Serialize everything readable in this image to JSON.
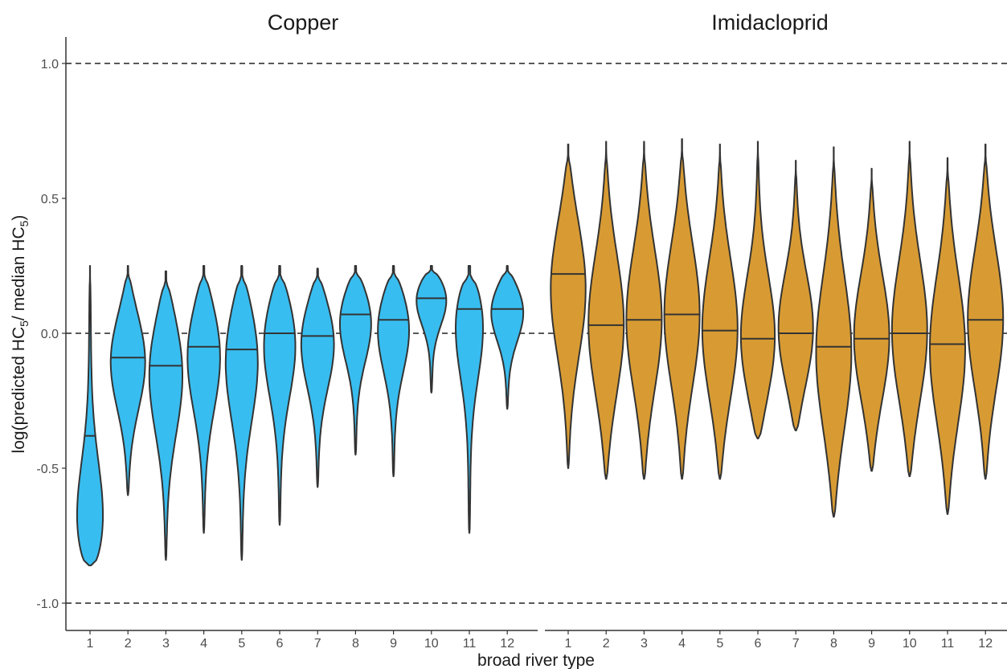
{
  "chart_data": {
    "type": "violin",
    "ylabel": "log(predicted HC5/ median HC5)",
    "ylabel_parts": {
      "p1": "log(predicted HC",
      "sub1": "5",
      "p2": "/ median HC",
      "sub2": "5",
      "p3": ")"
    },
    "xlabel": "broad river type",
    "ylim": [
      -1.1,
      1.1
    ],
    "yticks": [
      1.0,
      0.5,
      0.0,
      -0.5,
      -1.0
    ],
    "ytick_labels": [
      "1.0",
      "0.5",
      "0.0",
      "-0.5",
      "-1.0"
    ],
    "reference_lines": [
      1.0,
      0.0,
      -1.0
    ],
    "grid": false,
    "categories": [
      "1",
      "2",
      "3",
      "4",
      "5",
      "6",
      "7",
      "8",
      "9",
      "10",
      "11",
      "12"
    ],
    "panels": [
      {
        "title": "Copper",
        "color": "#38BDF0",
        "violins": [
          {
            "category": "1",
            "min": -0.86,
            "max": 0.25,
            "median": -0.38,
            "peak": -0.78
          },
          {
            "category": "2",
            "min": -0.6,
            "max": 0.25,
            "median": -0.09,
            "peak": -0.09
          },
          {
            "category": "3",
            "min": -0.84,
            "max": 0.23,
            "median": -0.12,
            "peak": -0.12
          },
          {
            "category": "4",
            "min": -0.74,
            "max": 0.25,
            "median": -0.05,
            "peak": -0.05
          },
          {
            "category": "5",
            "min": -0.84,
            "max": 0.25,
            "median": -0.06,
            "peak": -0.06
          },
          {
            "category": "6",
            "min": -0.71,
            "max": 0.25,
            "median": 0.0,
            "peak": 0.0
          },
          {
            "category": "7",
            "min": -0.57,
            "max": 0.24,
            "median": -0.01,
            "peak": -0.01
          },
          {
            "category": "8",
            "min": -0.45,
            "max": 0.25,
            "median": 0.07,
            "peak": 0.07
          },
          {
            "category": "9",
            "min": -0.53,
            "max": 0.25,
            "median": 0.05,
            "peak": 0.05
          },
          {
            "category": "10",
            "min": -0.22,
            "max": 0.25,
            "median": 0.13,
            "peak": 0.15
          },
          {
            "category": "11",
            "min": -0.74,
            "max": 0.25,
            "median": 0.09,
            "peak": 0.1
          },
          {
            "category": "12",
            "min": -0.28,
            "max": 0.25,
            "median": 0.09,
            "peak": 0.1
          }
        ]
      },
      {
        "title": "Imidacloprid",
        "color": "#D89B33",
        "violins": [
          {
            "category": "1",
            "min": -0.5,
            "max": 0.7,
            "median": 0.22,
            "peak": 0.18
          },
          {
            "category": "2",
            "min": -0.54,
            "max": 0.71,
            "median": 0.03,
            "peak": 0.03
          },
          {
            "category": "3",
            "min": -0.54,
            "max": 0.71,
            "median": 0.05,
            "peak": 0.05
          },
          {
            "category": "4",
            "min": -0.54,
            "max": 0.72,
            "median": 0.07,
            "peak": 0.07
          },
          {
            "category": "5",
            "min": -0.54,
            "max": 0.7,
            "median": 0.01,
            "peak": 0.01
          },
          {
            "category": "6",
            "min": -0.39,
            "max": 0.71,
            "median": -0.02,
            "peak": -0.04
          },
          {
            "category": "7",
            "min": -0.36,
            "max": 0.64,
            "median": 0.0,
            "peak": 0.0
          },
          {
            "category": "8",
            "min": -0.68,
            "max": 0.69,
            "median": -0.05,
            "peak": -0.08
          },
          {
            "category": "9",
            "min": -0.51,
            "max": 0.61,
            "median": -0.02,
            "peak": -0.02
          },
          {
            "category": "10",
            "min": -0.53,
            "max": 0.71,
            "median": 0.0,
            "peak": 0.0
          },
          {
            "category": "11",
            "min": -0.67,
            "max": 0.65,
            "median": -0.04,
            "peak": -0.06
          },
          {
            "category": "12",
            "min": -0.54,
            "max": 0.7,
            "median": 0.05,
            "peak": 0.05
          }
        ]
      }
    ]
  }
}
